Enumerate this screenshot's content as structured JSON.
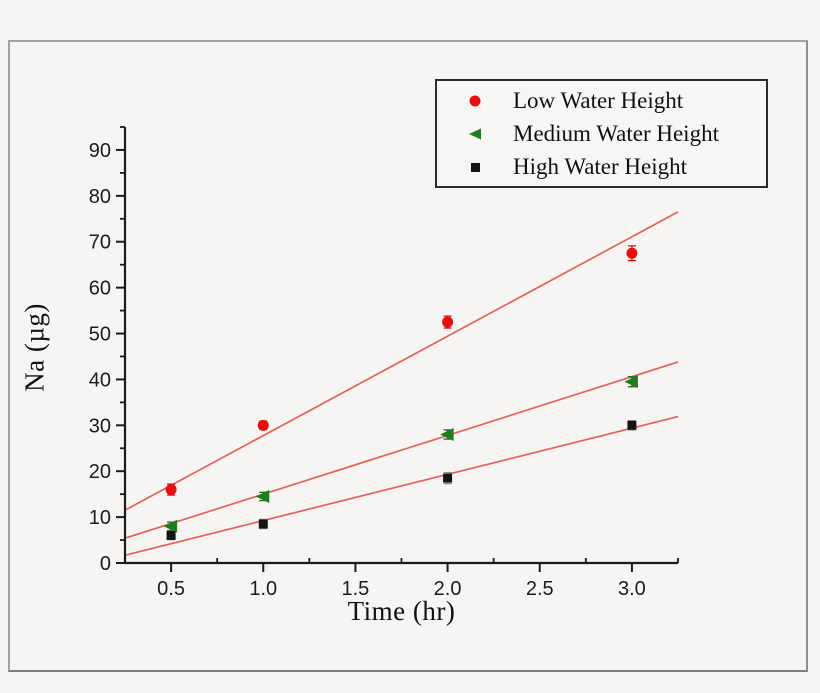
{
  "figure": {
    "background_color": "#f5f4f2",
    "frame_border_color": "#8f8f8d"
  },
  "chart_data": {
    "type": "scatter",
    "title": "",
    "xlabel": "Time (hr)",
    "ylabel": "Na (µg)",
    "xlim": [
      0.25,
      3.25
    ],
    "ylim": [
      0,
      95
    ],
    "grid": false,
    "legend_position": "top-right",
    "axis_color": "#1a1a1a",
    "fit_line_color": "#e4625a",
    "x_ticks": {
      "values": [
        0.5,
        1.0,
        1.5,
        2.0,
        2.5,
        3.0
      ],
      "labels": [
        "0.5",
        "1.0",
        "1.5",
        "2.0",
        "2.5",
        "3.0"
      ],
      "minor_values": [
        0.25,
        0.75,
        1.25,
        1.75,
        2.25,
        2.75,
        3.25
      ]
    },
    "y_ticks": {
      "values": [
        0,
        10,
        20,
        30,
        40,
        50,
        60,
        70,
        80,
        90
      ],
      "labels": [
        "0",
        "10",
        "20",
        "30",
        "40",
        "50",
        "60",
        "70",
        "80",
        "90"
      ],
      "minor_values": [
        5,
        15,
        25,
        35,
        45,
        55,
        65,
        75,
        85,
        95
      ]
    },
    "x": [
      0.5,
      1.0,
      2.0,
      3.0
    ],
    "series": [
      {
        "name": "Low Water Height",
        "marker": "circle",
        "color": "#e60f0f",
        "error_color": "#e60f0f",
        "values": [
          16,
          30,
          52.5,
          67.5
        ],
        "yerr": [
          1.2,
          0.9,
          1.3,
          1.6
        ],
        "fit_line": {
          "x1": 0.25,
          "y1": 11.5,
          "x2": 3.25,
          "y2": 76.5
        }
      },
      {
        "name": "Medium Water Height",
        "marker": "triangle-left",
        "color": "#1e7d1e",
        "error_color": "#2f5d2f",
        "values": [
          8,
          14.5,
          28,
          39.5
        ],
        "yerr": [
          0.9,
          0.9,
          1.0,
          1.1
        ],
        "fit_line": {
          "x1": 0.25,
          "y1": 5.4,
          "x2": 3.25,
          "y2": 43.8
        }
      },
      {
        "name": "High Water Height",
        "marker": "square",
        "color": "#141414",
        "error_color": "#8a8a8a",
        "values": [
          6,
          8.5,
          18.5,
          30
        ],
        "yerr": [
          0.9,
          1.0,
          1.2,
          1.0
        ],
        "fit_line": {
          "x1": 0.25,
          "y1": 1.7,
          "x2": 3.25,
          "y2": 31.9
        }
      }
    ]
  }
}
